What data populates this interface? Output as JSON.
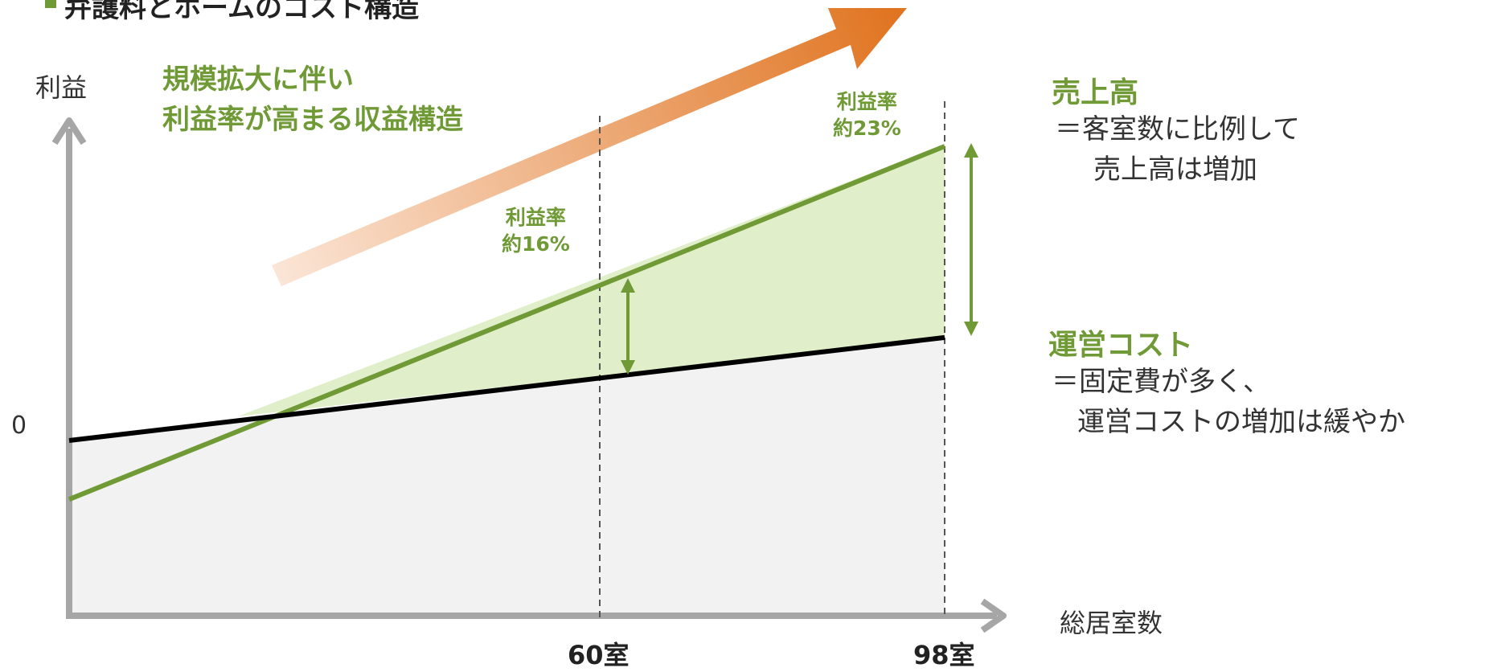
{
  "title": "弁護料とホームのコスト構造",
  "headline": {
    "line1": "規模拡大に伴い",
    "line2": "利益率が高まる収益構造"
  },
  "axes": {
    "y_label": "利益",
    "x_label": "総居室数",
    "zero_label": "0"
  },
  "ticks": {
    "t60": "60室",
    "t98": "98室"
  },
  "margins": {
    "m60": {
      "line1": "利益率",
      "line2": "約16%"
    },
    "m98": {
      "line1": "利益率",
      "line2": "約23%"
    }
  },
  "sales": {
    "heading": "売上高",
    "desc1": "＝客室数に比例して",
    "desc2": "売上高は増加"
  },
  "cost": {
    "heading": "運営コスト",
    "desc1": "＝固定費が多く、",
    "desc2": "運営コストの増加は緩やか"
  },
  "colors": {
    "green": "#6f9a35",
    "green_fill": "#e0efc9",
    "cost_line": "#000000",
    "cost_fill": "#f2f2f2",
    "axis": "#a6a6a6",
    "arrow_start": "#fbe6d8",
    "arrow_end": "#e07420"
  },
  "chart_data": {
    "type": "line",
    "x_categories": [
      "60室",
      "98室"
    ],
    "ylim": [
      -2,
      2
    ],
    "series": [
      {
        "name": "売上高",
        "values": [
          {
            "x": 0,
            "y": -0.4
          },
          {
            "x": 98,
            "y": 2.0
          }
        ]
      },
      {
        "name": "運営コスト",
        "values": [
          {
            "x": 0,
            "y": 0.0
          },
          {
            "x": 98,
            "y": 0.7
          }
        ]
      }
    ],
    "annotations": [
      {
        "x": 60,
        "text": "利益率 約16%"
      },
      {
        "x": 98,
        "text": "利益率 約23%"
      }
    ],
    "xlabel": "総居室数",
    "ylabel": "利益"
  }
}
